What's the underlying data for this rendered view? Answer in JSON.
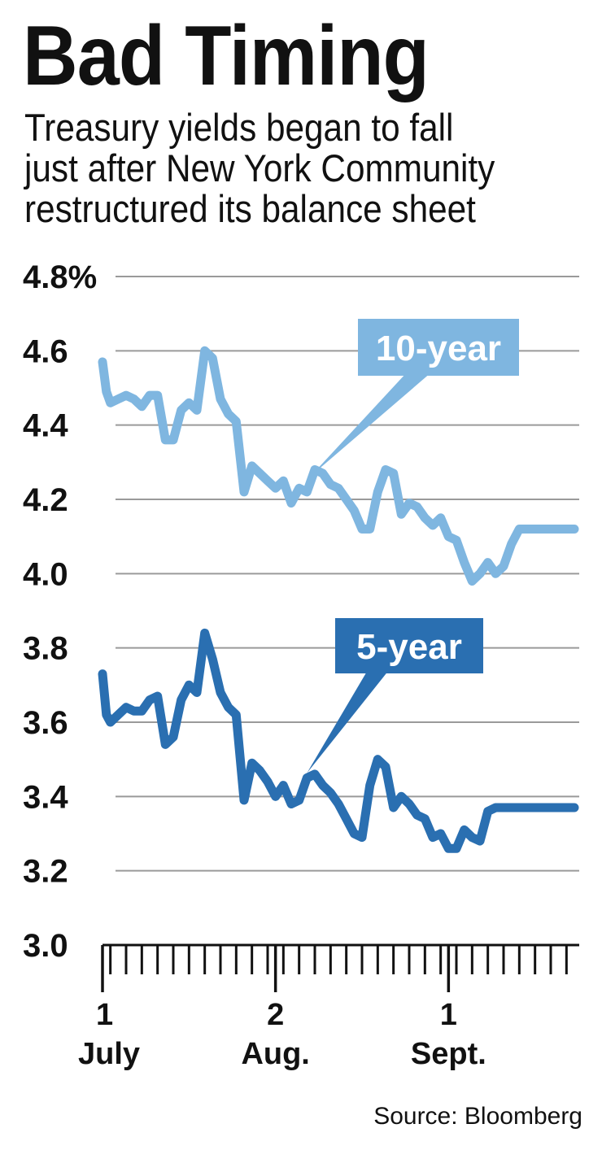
{
  "chart_data": {
    "type": "line",
    "title": "Bad Timing",
    "subtitle_lines": [
      "Treasury yields began to fall",
      "just after New York Community",
      "restructured its balance sheet"
    ],
    "ylim": [
      3.0,
      4.8
    ],
    "yticks": [
      {
        "value": 4.8,
        "label": "4.8%"
      },
      {
        "value": 4.6,
        "label": "4.6"
      },
      {
        "value": 4.4,
        "label": "4.4"
      },
      {
        "value": 4.2,
        "label": "4.2"
      },
      {
        "value": 4.0,
        "label": "4.0"
      },
      {
        "value": 3.8,
        "label": "3.8"
      },
      {
        "value": 3.6,
        "label": "3.6"
      },
      {
        "value": 3.4,
        "label": "3.4"
      },
      {
        "value": 3.2,
        "label": "3.2"
      },
      {
        "value": 3.0,
        "label": "3.0"
      }
    ],
    "grid": true,
    "xlim": [
      0,
      60
    ],
    "x_minor_ticks": [
      0,
      1,
      3,
      5,
      7,
      9,
      11,
      13,
      15,
      17,
      19,
      21,
      23,
      25,
      27,
      29,
      31,
      33,
      35,
      37,
      39,
      41,
      43,
      45,
      47,
      49,
      51,
      53,
      55,
      57,
      59
    ],
    "x_major_ticks": [
      {
        "x": 0,
        "day": "1",
        "month": "July"
      },
      {
        "x": 22,
        "day": "2",
        "month": "Aug."
      },
      {
        "x": 44,
        "day": "1",
        "month": "Sept."
      }
    ],
    "series": [
      {
        "name": "10-year",
        "color": "#7fb6e0",
        "x": [
          0,
          0.5,
          1,
          2,
          3,
          4,
          5,
          6,
          7,
          8,
          9,
          10,
          11,
          12,
          13,
          14,
          15,
          16,
          17,
          18,
          19,
          20,
          21,
          22,
          23,
          24,
          25,
          26,
          27,
          28,
          29,
          30,
          31,
          32,
          33,
          34,
          35,
          36,
          37,
          38,
          39,
          40,
          41,
          42,
          43,
          44,
          45,
          46,
          47,
          48,
          49,
          50,
          51,
          52,
          53,
          54,
          55,
          56,
          57,
          58,
          59,
          60
        ],
        "values": [
          4.57,
          4.49,
          4.46,
          4.47,
          4.48,
          4.47,
          4.45,
          4.48,
          4.48,
          4.36,
          4.36,
          4.44,
          4.46,
          4.44,
          4.6,
          4.58,
          4.47,
          4.43,
          4.41,
          4.22,
          4.29,
          4.27,
          4.25,
          4.23,
          4.25,
          4.19,
          4.23,
          4.22,
          4.28,
          4.27,
          4.24,
          4.23,
          4.2,
          4.17,
          4.12,
          4.12,
          4.22,
          4.28,
          4.27,
          4.16,
          4.19,
          4.18,
          4.15,
          4.13,
          4.15,
          4.1,
          4.09,
          4.03,
          3.98,
          4.0,
          4.03,
          4.0,
          4.02,
          4.08,
          4.12,
          4.12,
          4.12,
          4.12,
          4.12,
          4.12,
          4.12,
          4.12
        ]
      },
      {
        "name": "5-year",
        "color": "#2a6fb1",
        "x": [
          0,
          0.5,
          1,
          2,
          3,
          4,
          5,
          6,
          7,
          8,
          9,
          10,
          11,
          12,
          13,
          14,
          15,
          16,
          17,
          18,
          19,
          20,
          21,
          22,
          23,
          24,
          25,
          26,
          27,
          28,
          29,
          30,
          31,
          32,
          33,
          34,
          35,
          36,
          37,
          38,
          39,
          40,
          41,
          42,
          43,
          44,
          45,
          46,
          47,
          48,
          49,
          50,
          51,
          52,
          53,
          54,
          55,
          56,
          57,
          58,
          59,
          60
        ],
        "values": [
          3.73,
          3.62,
          3.6,
          3.62,
          3.64,
          3.63,
          3.63,
          3.66,
          3.67,
          3.54,
          3.56,
          3.66,
          3.7,
          3.68,
          3.84,
          3.77,
          3.68,
          3.64,
          3.62,
          3.39,
          3.49,
          3.47,
          3.44,
          3.4,
          3.43,
          3.38,
          3.39,
          3.45,
          3.46,
          3.43,
          3.41,
          3.38,
          3.34,
          3.3,
          3.29,
          3.43,
          3.5,
          3.48,
          3.37,
          3.4,
          3.38,
          3.35,
          3.34,
          3.29,
          3.3,
          3.26,
          3.26,
          3.31,
          3.29,
          3.28,
          3.36,
          3.37,
          3.37,
          3.37,
          3.37,
          3.37,
          3.37,
          3.37,
          3.37,
          3.37,
          3.37,
          3.37
        ]
      }
    ],
    "annotations": [
      {
        "label": "10-year",
        "series": "10-year",
        "point_x": 26.5
      },
      {
        "label": "5-year",
        "series": "5-year",
        "point_x": 26.0
      }
    ],
    "source": "Source: Bloomberg"
  }
}
